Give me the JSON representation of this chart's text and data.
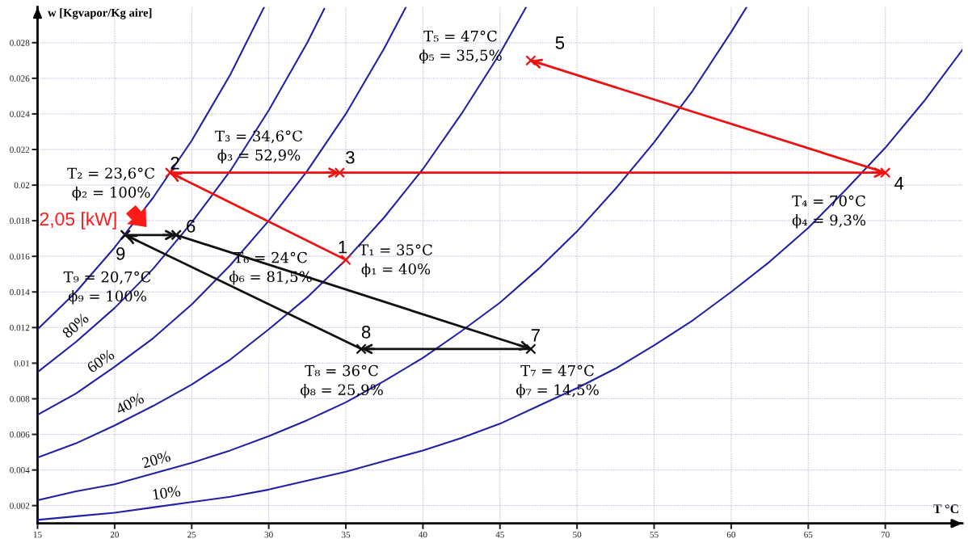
{
  "chart_data": {
    "type": "line",
    "xlabel": "T °C",
    "ylabel": "w [Kgvapor/Kg aire]",
    "xlim": [
      15,
      75
    ],
    "ylim": [
      0.001,
      0.03
    ],
    "xticks": [
      15,
      20,
      25,
      30,
      35,
      40,
      45,
      50,
      55,
      60,
      65,
      70
    ],
    "yticks": [
      0.002,
      0.004,
      0.006,
      0.008,
      0.01,
      0.012,
      0.014,
      0.016,
      0.018,
      0.02,
      0.022,
      0.024,
      0.026,
      0.028
    ],
    "grid": true,
    "series": [
      {
        "color": "#2121a8",
        "x": [
          15,
          17.5,
          20,
          22.5,
          25,
          27.5,
          29.7
        ],
        "values": [
          0.0119,
          0.014,
          0.0165,
          0.0193,
          0.0225,
          0.0262,
          0.03
        ]
      },
      {
        "name": "80%",
        "color": "#2121a8",
        "x": [
          15,
          17.5,
          20,
          22.5,
          25,
          27.5,
          30,
          32.5,
          33.6
        ],
        "values": [
          0.0095,
          0.0112,
          0.0131,
          0.0153,
          0.0179,
          0.0208,
          0.0242,
          0.028,
          0.0299
        ]
      },
      {
        "name": "60%",
        "color": "#2121a8",
        "x": [
          15,
          17.5,
          20,
          22.5,
          25,
          27.5,
          30,
          32.5,
          35,
          37.5,
          38.9
        ],
        "values": [
          0.0071,
          0.0083,
          0.0098,
          0.0114,
          0.0133,
          0.0155,
          0.018,
          0.0208,
          0.024,
          0.0277,
          0.03
        ]
      },
      {
        "name": "40%",
        "color": "#2121a8",
        "x": [
          15,
          17.5,
          20,
          22.5,
          25,
          27.5,
          30,
          32.5,
          35,
          37.5,
          40,
          42.5,
          45,
          46.7
        ],
        "values": [
          0.0047,
          0.0055,
          0.0065,
          0.0076,
          0.0088,
          0.0102,
          0.0119,
          0.0137,
          0.0158,
          0.0182,
          0.0209,
          0.024,
          0.0274,
          0.03
        ]
      },
      {
        "name": "20%",
        "color": "#2121a8",
        "x": [
          15,
          17.5,
          20,
          22.5,
          25,
          27.5,
          30,
          32.5,
          35,
          37.5,
          40,
          42.5,
          45,
          47.5,
          50,
          52.5,
          55,
          57.5,
          60,
          61
        ],
        "values": [
          0.0023,
          0.0028,
          0.0032,
          0.0038,
          0.0044,
          0.0051,
          0.0059,
          0.0068,
          0.0078,
          0.009,
          0.0103,
          0.0118,
          0.0134,
          0.0153,
          0.0174,
          0.0198,
          0.0224,
          0.0253,
          0.0286,
          0.03
        ]
      },
      {
        "name": "10%",
        "color": "#2121a8",
        "x": [
          15,
          17.5,
          20,
          22.5,
          25,
          27.5,
          30,
          32.5,
          35,
          37.5,
          40,
          42.5,
          45,
          47.5,
          50,
          52.5,
          55,
          57.5,
          60,
          62.5,
          65,
          67.5,
          70,
          72.5,
          75
        ],
        "values": [
          0.0012,
          0.0014,
          0.0016,
          0.0019,
          0.0022,
          0.0025,
          0.0029,
          0.0034,
          0.0039,
          0.0045,
          0.0051,
          0.0058,
          0.0066,
          0.0076,
          0.0086,
          0.0097,
          0.011,
          0.0124,
          0.014,
          0.0157,
          0.0176,
          0.0198,
          0.0221,
          0.0247,
          0.0276
        ]
      },
      {
        "color": "#ee1111",
        "marker": "cross",
        "x": [
          35,
          23.6,
          34.6,
          70,
          47
        ],
        "values": [
          0.0158,
          0.0207,
          0.0207,
          0.0207,
          0.027
        ]
      },
      {
        "color": "#111111",
        "marker": "cross",
        "x": [
          24,
          47,
          36,
          20.7
        ],
        "values": [
          0.0172,
          0.0108,
          0.0108,
          0.0172
        ]
      },
      {
        "color": "#111111",
        "marker": "cross",
        "x": [
          20.7,
          24
        ],
        "values": [
          0.0172,
          0.0172
        ]
      }
    ],
    "annotations": [
      {
        "text": "1",
        "x": 35,
        "y": 0.0158
      },
      {
        "text": "2",
        "x": 23.6,
        "y": 0.0207
      },
      {
        "text": "3",
        "x": 34.6,
        "y": 0.0207
      },
      {
        "text": "4",
        "x": 70,
        "y": 0.0207
      },
      {
        "text": "5",
        "x": 47,
        "y": 0.027
      },
      {
        "text": "6",
        "x": 24,
        "y": 0.0172
      },
      {
        "text": "7",
        "x": 47,
        "y": 0.0108
      },
      {
        "text": "8",
        "x": 36,
        "y": 0.0108
      },
      {
        "text": "9",
        "x": 20.7,
        "y": 0.0172
      },
      "T₁ = 35°C\nϕ₁ = 40%",
      "T₂ = 23,6°C\nϕ₂ = 100%",
      "T₃ = 34,6°C\nϕ₃ = 52,9%",
      "T₄ = 70°C\nϕ₄ = 9,3%",
      "T₅ = 47°C\nϕ₅ = 35,5%",
      "T₆ = 24°C\nϕ₆ = 81,5%",
      "T₇ = 47°C\nϕ₇ = 14,5%",
      "T₈ = 36°C\nϕ₈ = 25,9%",
      "T₉ = 20,7°C\nϕ₉ = 100%",
      "2,05 [kW]"
    ]
  }
}
